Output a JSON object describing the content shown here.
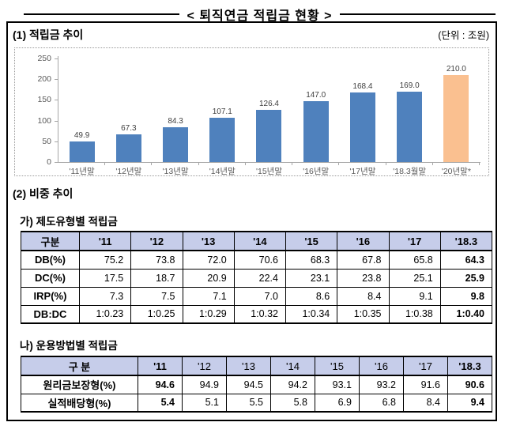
{
  "title": "< 퇴직연금 적립금 현황 >",
  "sections": {
    "s1": {
      "heading": "(1) 적립금 추이",
      "unit": "(단위 : 조원)"
    },
    "s2": {
      "heading": "(2) 비중 추이"
    }
  },
  "colors": {
    "bar": "#4F81BD",
    "bar_highlight": "#FAC090",
    "table_header_bg": "#C6CDEA",
    "axis": "#A6A6A6"
  },
  "chart_data": [
    {
      "type": "bar",
      "title": "적립금 추이",
      "ylabel": "",
      "xlabel": "",
      "categories": [
        "'11년말",
        "'12년말",
        "'13년말",
        "'14년말",
        "'15년말",
        "'16년말",
        "'17년말",
        "'18.3월말",
        "'20년말*"
      ],
      "values": [
        49.9,
        67.3,
        84.3,
        107.1,
        126.4,
        147.0,
        168.4,
        169.0,
        210.0
      ],
      "value_labels": [
        "49.9",
        "67.3",
        "84.3",
        "107.1",
        "126.4",
        "147.0",
        "168.4",
        "169.0",
        "210.0"
      ],
      "ylim": [
        0,
        250
      ],
      "ytick_step": 50,
      "grid": false,
      "legend": false,
      "highlight_index": 8
    },
    {
      "type": "table",
      "title": "가) 제도유형별 적립금",
      "header": [
        "구분",
        "'11",
        "'12",
        "'13",
        "'14",
        "'15",
        "'16",
        "'17",
        "'18.3"
      ],
      "rows": [
        [
          "DB(%)",
          "75.2",
          "73.8",
          "72.0",
          "70.6",
          "68.3",
          "67.8",
          "65.8",
          "64.3"
        ],
        [
          "DC(%)",
          "17.5",
          "18.7",
          "20.9",
          "22.4",
          "23.1",
          "23.8",
          "25.1",
          "25.9"
        ],
        [
          "IRP(%)",
          "7.3",
          "7.5",
          "7.1",
          "7.0",
          "8.6",
          "8.4",
          "9.1",
          "9.8"
        ],
        [
          "DB:DC",
          "1:0.23",
          "1:0.25",
          "1:0.29",
          "1:0.32",
          "1:0.34",
          "1:0.35",
          "1:0.38",
          "1:0.40"
        ]
      ],
      "header_bold_cols": [
        0,
        1,
        2,
        3,
        4,
        5,
        6,
        7,
        8
      ],
      "bold_value_cols": [
        8
      ]
    },
    {
      "type": "table",
      "title": "나) 운용방법별 적립금",
      "header": [
        "구 분",
        "'11",
        "'12",
        "'13",
        "'14",
        "'15",
        "'16",
        "'17",
        "'18.3"
      ],
      "rows": [
        [
          "원리금보장형(%)",
          "94.6",
          "94.9",
          "94.5",
          "94.2",
          "93.1",
          "93.2",
          "91.6",
          "90.6"
        ],
        [
          "실적배당형(%)",
          "5.4",
          "5.1",
          "5.5",
          "5.8",
          "6.9",
          "6.8",
          "8.4",
          "9.4"
        ]
      ],
      "header_bold_cols": [
        0,
        1,
        8
      ],
      "bold_value_cols": [
        1,
        8
      ]
    }
  ]
}
